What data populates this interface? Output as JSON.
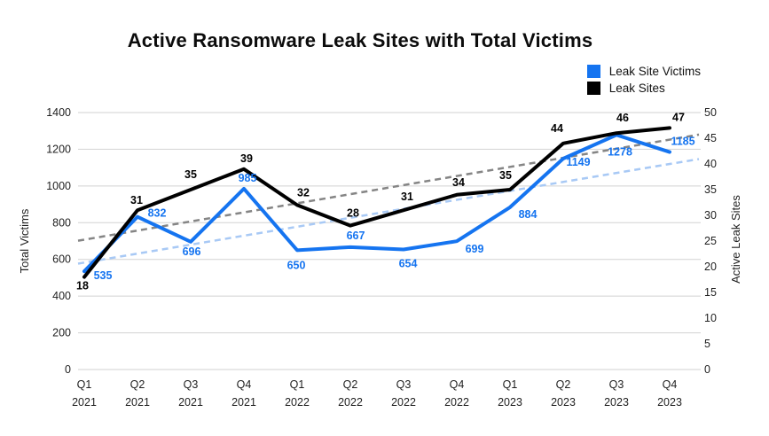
{
  "header": {
    "title": "Active Ransomware Leak Sites with Total Victims"
  },
  "legend": {
    "items": [
      {
        "label": "Leak Site Victims",
        "color": "#1574f0"
      },
      {
        "label": "Leak Sites",
        "color": "#000000"
      }
    ]
  },
  "chart_data": {
    "type": "line",
    "title": "Active Ransomware Leak Sites with Total Victims",
    "categories": [
      "Q1 2021",
      "Q2 2021",
      "Q3 2021",
      "Q4 2021",
      "Q1 2022",
      "Q2 2022",
      "Q3 2022",
      "Q4 2022",
      "Q1 2023",
      "Q2 2023",
      "Q3 2023",
      "Q4 2023"
    ],
    "series": [
      {
        "name": "Leak Site Victims",
        "axis": "left",
        "color": "#1574f0",
        "values": [
          535,
          832,
          696,
          985,
          650,
          667,
          654,
          699,
          884,
          1149,
          1278,
          1185
        ],
        "label_offsets": [
          [
            21,
            5
          ],
          [
            22,
            -4
          ],
          [
            1,
            11
          ],
          [
            4,
            -12
          ],
          [
            -1,
            17
          ],
          [
            6,
            -13
          ],
          [
            5,
            16
          ],
          [
            20,
            9
          ],
          [
            20,
            8
          ],
          [
            17,
            4
          ],
          [
            4,
            19
          ],
          [
            15,
            -12
          ]
        ]
      },
      {
        "name": "Leak Sites",
        "axis": "right",
        "color": "#000000",
        "values": [
          18,
          31,
          35,
          39,
          32,
          28,
          31,
          34,
          35,
          44,
          46,
          47
        ],
        "label_offsets": [
          [
            -2,
            10
          ],
          [
            -1,
            -11
          ],
          [
            0,
            -17
          ],
          [
            3,
            -12
          ],
          [
            7,
            -14
          ],
          [
            3,
            -14
          ],
          [
            4,
            -15
          ],
          [
            2,
            -14
          ],
          [
            -5,
            -16
          ],
          [
            -7,
            -17
          ],
          [
            7,
            -17
          ],
          [
            10,
            -12
          ]
        ]
      }
    ],
    "trendlines": [
      {
        "series": "Leak Site Victims",
        "style": "dashed",
        "color": "#a8c9f5"
      },
      {
        "series": "Leak Sites",
        "style": "dashed",
        "color": "#858585"
      }
    ],
    "axes": {
      "left": {
        "title": "Total Victims",
        "min": 0,
        "max": 1400,
        "step": 200
      },
      "right": {
        "title": "Active Leak Sites",
        "min": 0,
        "max": 50,
        "step": 5
      }
    },
    "grid": {
      "show": true,
      "color": "#d2d2d2"
    },
    "legend_position": "top-right"
  }
}
